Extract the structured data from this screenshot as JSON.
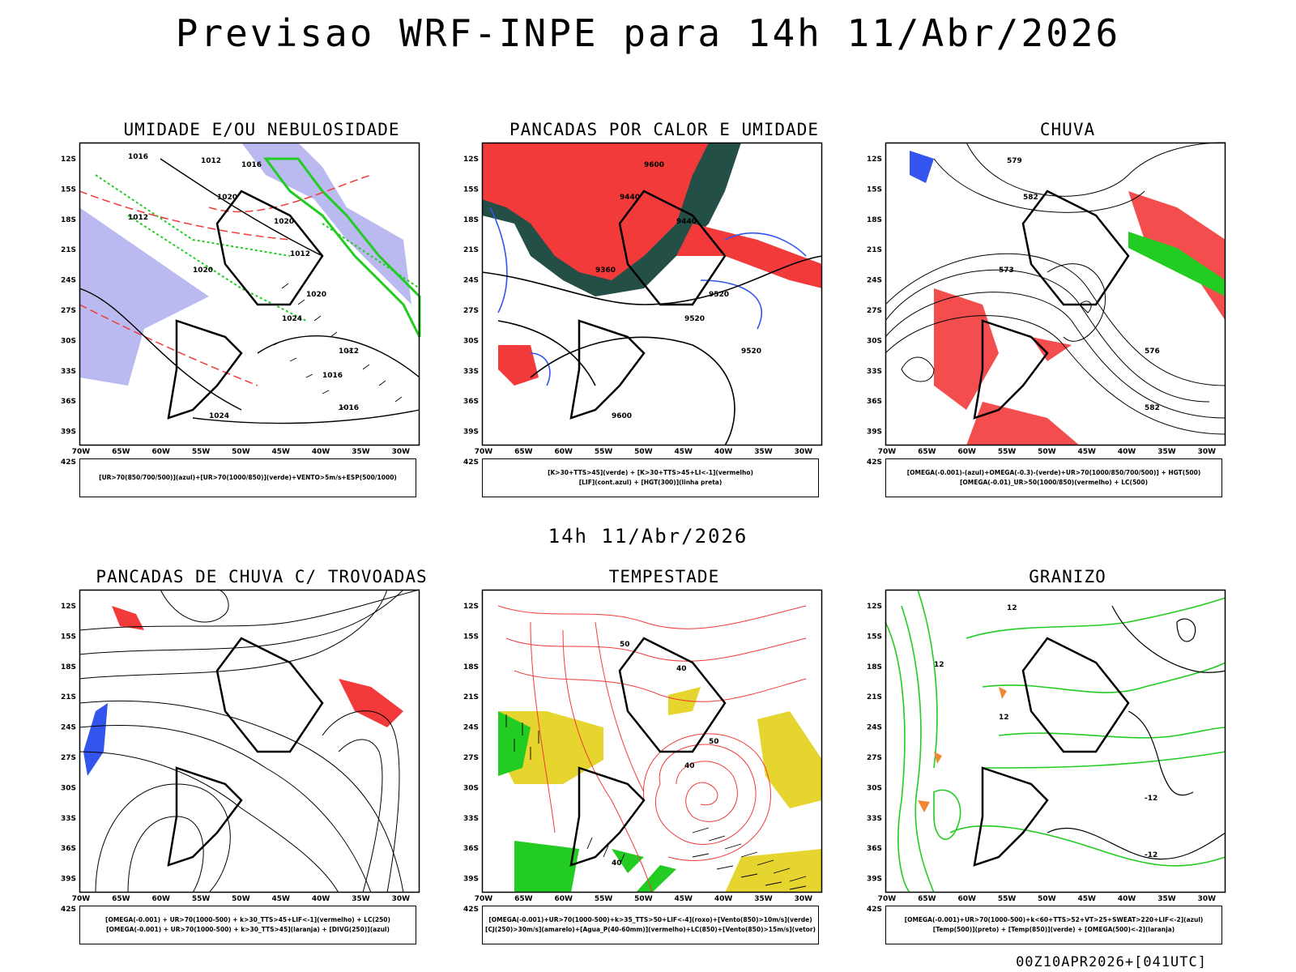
{
  "title": "Previsao WRF-INPE  para 14h 11/Abr/2026",
  "mid_time": "14h 11/Abr/2026",
  "footer": "00Z10APR2026+[041UTC]",
  "axes": {
    "lat_labels": [
      "12S",
      "15S",
      "18S",
      "21S",
      "24S",
      "27S",
      "30S",
      "33S",
      "36S",
      "39S",
      "42S"
    ],
    "lon_labels": [
      "70W",
      "65W",
      "60W",
      "55W",
      "50W",
      "45W",
      "40W",
      "35W",
      "30W"
    ]
  },
  "colors": {
    "red": "#f23a3a",
    "green": "#22cc22",
    "blue": "#3355ee",
    "lavender": "#a9a9ee",
    "darkgreen": "#234f47",
    "yellow": "#e6d52e",
    "orange": "#ee8833",
    "black": "#000000"
  },
  "panels": [
    {
      "title": "UMIDADE E/OU NEBULOSIDADE",
      "legend": [
        "[UR>70(850/700/500)](azul)+[UR>70(1000/850)](verde)+VENTO>5m/s+ESP(500/1000)"
      ],
      "labels": [
        "1012",
        "1012",
        "1012",
        "1016",
        "1016",
        "1016",
        "1020",
        "1020",
        "1024",
        "1024",
        "1020",
        "1020",
        "1012",
        "1016"
      ]
    },
    {
      "title": "PANCADAS POR CALOR E UMIDADE",
      "legend": [
        "[K>30+TTS>45](verde) + [K>30+TTS>45+LI<-1](vermelho)",
        "[LIF](cont.azul) + [HGT(300)](linha preta)"
      ],
      "labels": [
        "9600",
        "9440",
        "9520",
        "9600",
        "9520",
        "9440",
        "9360",
        "9520"
      ]
    },
    {
      "title": "CHUVA",
      "legend": [
        "[OMEGA(-0.001)-(azul)+OMEGA(-0.3)-(verde)+UR>70(1000/850/700/500)] + HGT(500)",
        "[OMEGA(-0.01)_UR>50(1000/850)(vermelho) + LC(500)"
      ],
      "labels": [
        "582",
        "573",
        "576",
        "582",
        "579"
      ]
    },
    {
      "title": "PANCADAS DE CHUVA C/ TROVOADAS",
      "legend": [
        "[OMEGA(-0.001) + UR>70(1000-500) + k>30_TTS>45+LIF<-1](vermelho) + LC(250)",
        "[OMEGA(-0.001) + UR>70(1000-500) + k>30_TTS>45](laranja) + [DIVG(250)](azul)"
      ],
      "labels": []
    },
    {
      "title": "TEMPESTADE",
      "legend": [
        "[OMEGA(-0.001)+UR>70(1000-500)+k>35_TTS>50+LIF<-4](roxo)+[Vento(850)>10m/s](verde)",
        "[CJ(250)>30m/s](amarelo)+[Agua_P(40-60mm)](vermelho)+LC(850)+[Vento(850)>15m/s](vetor)"
      ],
      "labels": [
        "40",
        "50",
        "40",
        "40",
        "50"
      ]
    },
    {
      "title": "GRANIZO",
      "legend": [
        "[OMEGA(-0.001)+UR>70(1000-500)+k<60+TTS>52+VT>25+SWEAT>220+LIF<-2](azul)",
        "[Temp(500)](preto) + [Temp(850)](verde) + [OMEGA(500)<-2](laranja)"
      ],
      "labels": [
        "12",
        "-12",
        "-12",
        "12",
        "12"
      ]
    }
  ]
}
